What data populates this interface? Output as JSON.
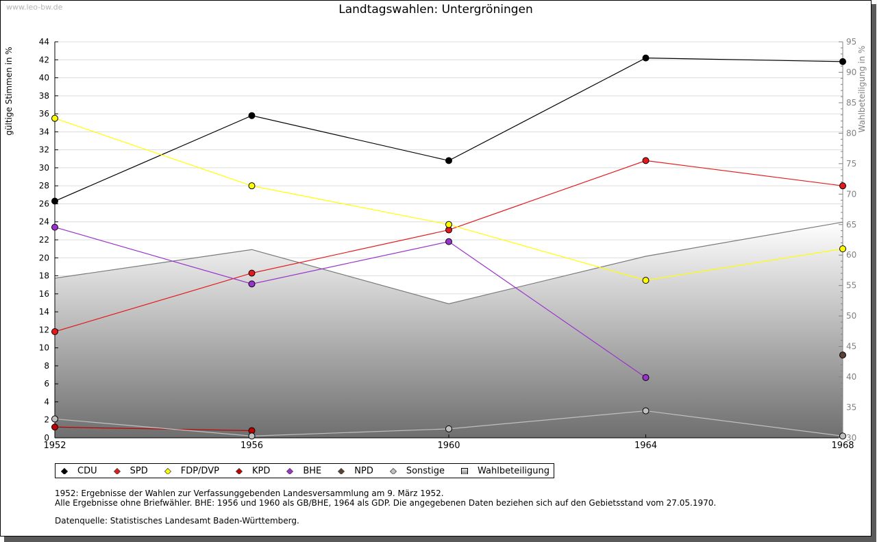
{
  "watermark": "www.leo-bw.de",
  "chart_data": {
    "type": "line",
    "title": "Landtagswahlen: Untergröningen",
    "x": [
      1952,
      1956,
      1960,
      1964,
      1968
    ],
    "xlabel": "",
    "ylabel": "gültige Stimmen in %",
    "ylabel_right": "Wahlbeteiligung in %",
    "ylim": [
      0,
      44
    ],
    "ylim_right": [
      30,
      95
    ],
    "yticks": [
      0,
      2,
      4,
      6,
      8,
      10,
      12,
      14,
      16,
      18,
      20,
      22,
      24,
      26,
      28,
      30,
      32,
      34,
      36,
      38,
      40,
      42,
      44
    ],
    "yticks_right": [
      30,
      35,
      40,
      45,
      50,
      55,
      60,
      65,
      70,
      75,
      80,
      85,
      90,
      95
    ],
    "grid": true,
    "legend_position": "bottom",
    "series": [
      {
        "name": "CDU",
        "color": "#000000",
        "axis": "left",
        "values": [
          26.3,
          35.8,
          30.8,
          42.2,
          41.8
        ]
      },
      {
        "name": "SPD",
        "color": "#e31a1c",
        "axis": "left",
        "values": [
          11.8,
          18.3,
          23.1,
          30.8,
          28.0
        ]
      },
      {
        "name": "FDP/DVP",
        "color": "#ffff00",
        "axis": "left",
        "values": [
          35.5,
          28.0,
          23.7,
          17.5,
          21.0
        ]
      },
      {
        "name": "KPD",
        "color": "#c00000",
        "axis": "left",
        "values": [
          1.2,
          0.8,
          null,
          null,
          null
        ]
      },
      {
        "name": "BHE",
        "color": "#9933cc",
        "axis": "left",
        "values": [
          23.4,
          17.1,
          21.8,
          6.7,
          null
        ]
      },
      {
        "name": "NPD",
        "color": "#5c4033",
        "axis": "left",
        "values": [
          null,
          null,
          null,
          null,
          9.2
        ]
      },
      {
        "name": "Sonstige",
        "color": "#c0c0c0",
        "axis": "left",
        "values": [
          2.1,
          0.2,
          1.0,
          3.0,
          0.2
        ]
      },
      {
        "name": "Wahlbeteiligung",
        "color": "#808080",
        "axis": "right",
        "type": "area",
        "values": [
          56.2,
          60.9,
          52.0,
          59.8,
          65.4
        ]
      }
    ]
  },
  "notes": {
    "line1": "1952: Ergebnisse der Wahlen zur Verfassunggebenden Landesversammlung am 9. März 1952.",
    "line2": "Alle Ergebnisse ohne Briefwähler. BHE: 1956 und 1960 als GB/BHE, 1964 als GDP. Die angegebenen Daten beziehen sich auf den Gebietsstand vom 27.05.1970.",
    "source": "Datenquelle: Statistisches Landesamt Baden-Württemberg."
  }
}
